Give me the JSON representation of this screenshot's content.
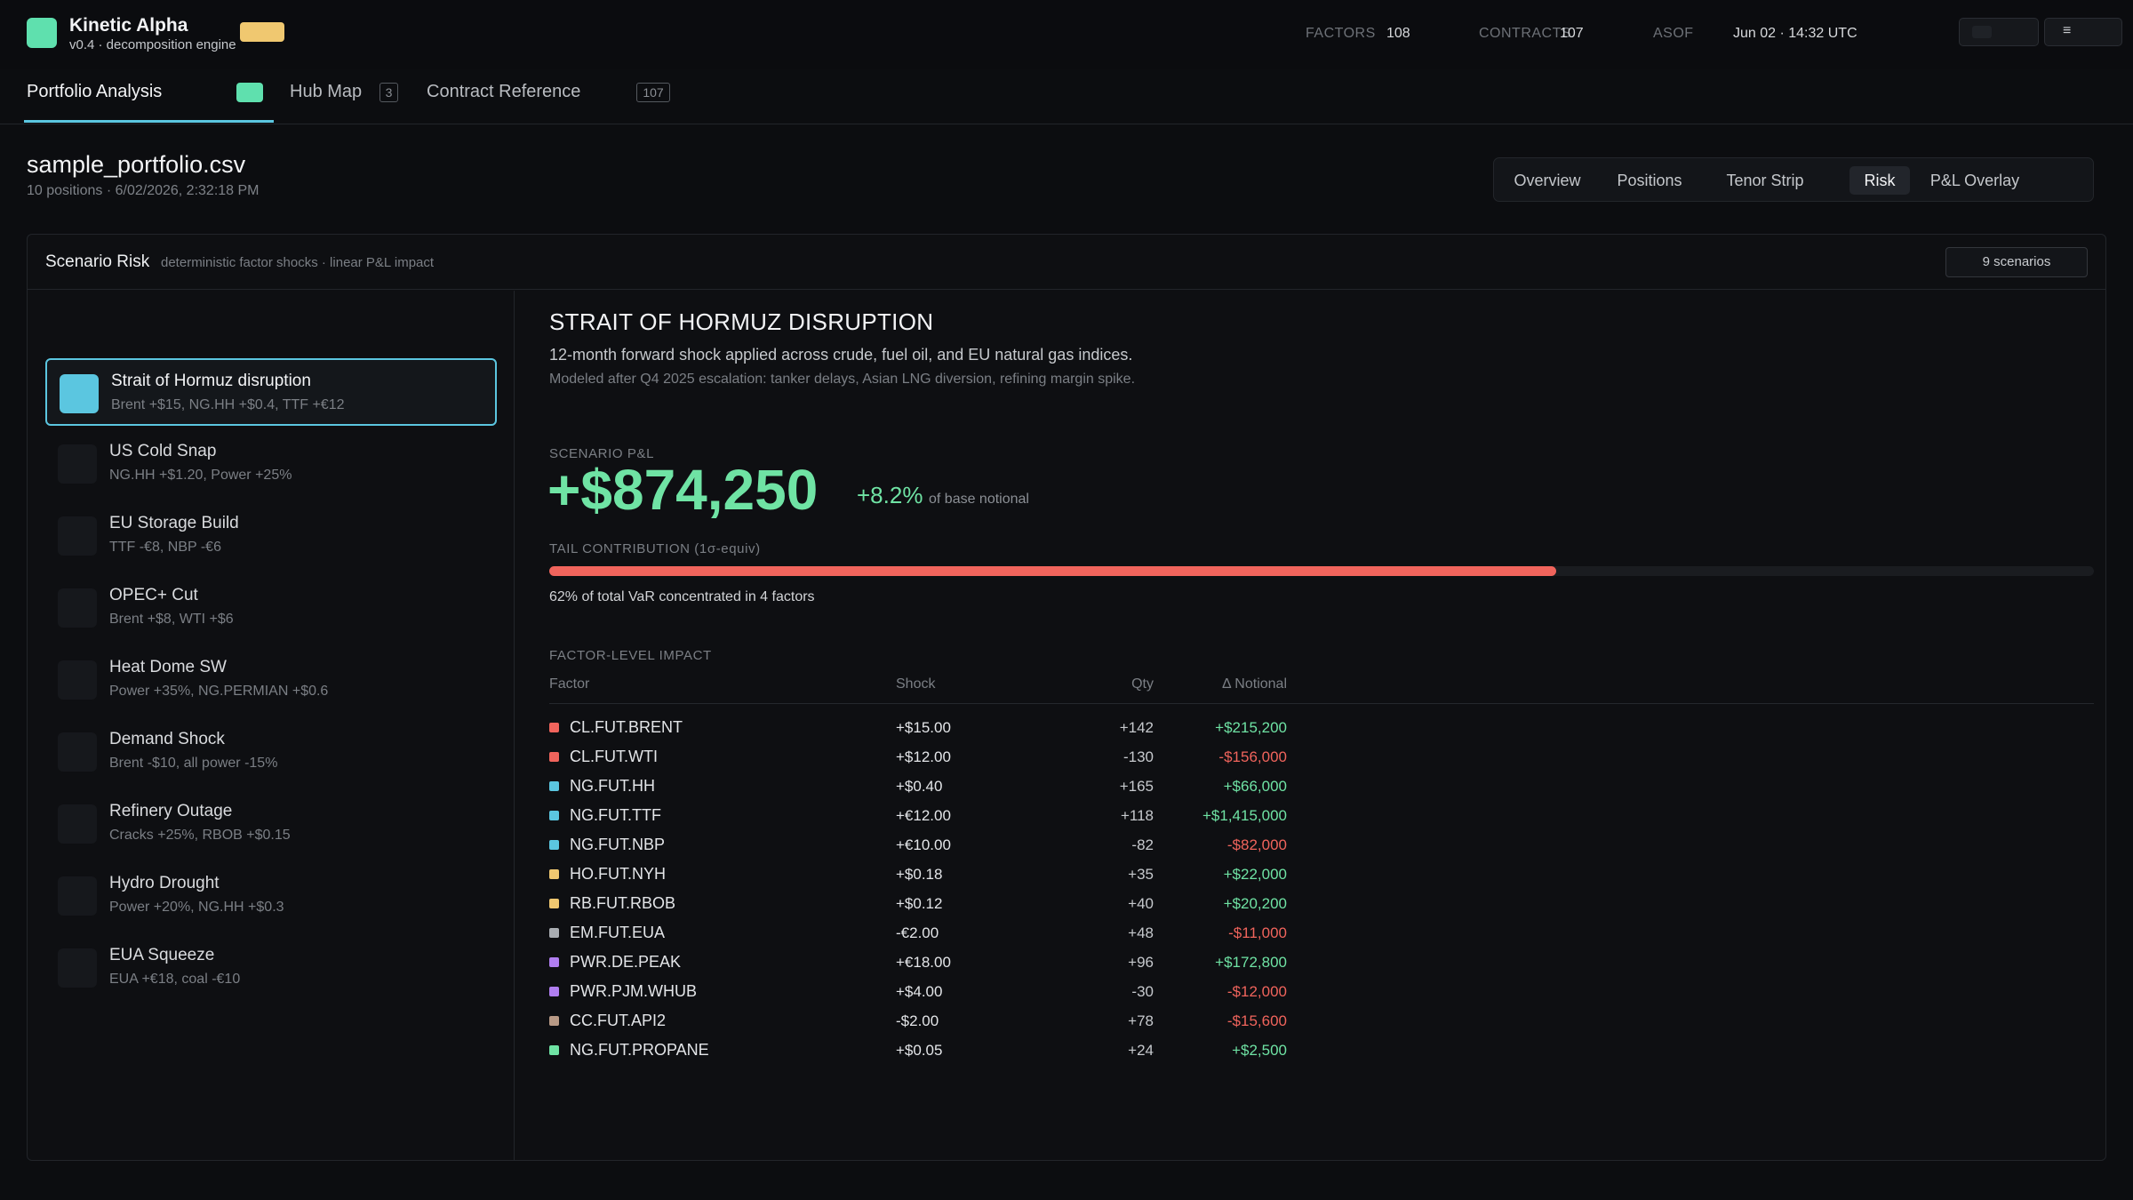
{
  "app": {
    "name": "Kinetic Alpha",
    "version": "v0.4 · decomposition engine",
    "stats": {
      "factors_label": "FACTORS",
      "factors_value": "108",
      "contracts_label": "CONTRACTS",
      "contracts_value": "107",
      "asof_label": "ASOF",
      "asof_value": "Jun 02 · 14:32 UTC"
    },
    "menu_glyph": "≡"
  },
  "tabs": [
    {
      "label": "Portfolio Analysis"
    },
    {
      "label": "Hub Map",
      "count": "3"
    },
    {
      "label": "Contract Reference",
      "count": "107"
    }
  ],
  "file": {
    "name": "sample_portfolio.csv",
    "meta": "10 positions · 6/02/2026, 2:32:18 PM"
  },
  "views": [
    "Overview",
    "Positions",
    "Tenor Strip",
    "Risk",
    "P&L Overlay"
  ],
  "active_view": "Risk",
  "panel": {
    "title": "Scenario Risk",
    "subtitle": "deterministic factor shocks · linear P&L impact",
    "count": "9 scenarios"
  },
  "scenarios": [
    {
      "name": "Strait of Hormuz disruption",
      "desc": "Brent +$15, NG.HH +$0.4, TTF +€12",
      "active": true
    },
    {
      "name": "US Cold Snap",
      "desc": "NG.HH +$1.20, Power +25%"
    },
    {
      "name": "EU Storage Build",
      "desc": "TTF -€8, NBP -€6"
    },
    {
      "name": "OPEC+ Cut",
      "desc": "Brent +$8, WTI +$6"
    },
    {
      "name": "Heat Dome SW",
      "desc": "Power +35%, NG.PERMIAN +$0.6"
    },
    {
      "name": "Demand Shock",
      "desc": "Brent -$10, all power -15%"
    },
    {
      "name": "Refinery Outage",
      "desc": "Cracks +25%, RBOB +$0.15"
    },
    {
      "name": "Hydro Drought",
      "desc": "Power +20%, NG.HH +$0.3"
    },
    {
      "name": "EUA Squeeze",
      "desc": "EUA +€18, coal -€10"
    }
  ],
  "detail": {
    "title": "STRAIT OF HORMUZ DISRUPTION",
    "desc": "12-month forward shock applied across crude, fuel oil, and EU natural gas indices.",
    "note": "Modeled after Q4 2025 escalation: tanker delays, Asian LNG diversion, refining margin spike.",
    "pnl_label": "SCENARIO P&L",
    "pnl_value": "+$874,250",
    "pnl_pct": "+8.2%",
    "pnl_of": "of base notional",
    "tail_label": "TAIL CONTRIBUTION (1σ-equiv)",
    "tail_fraction": 0.62,
    "tail_note": "62% of total VaR concentrated in 4 factors",
    "impact_label": "FACTOR-LEVEL IMPACT",
    "columns": {
      "factor": "Factor",
      "shock": "Shock",
      "qty": "Qty",
      "notional": "Δ Notional"
    }
  },
  "colors": {
    "crude": "#f0645c",
    "gas": "#5bc6e0",
    "products": "#f0c870",
    "emissions": "#a9adb2",
    "power": "#b07ef0",
    "coal": "#b89a86",
    "ngl": "#6fe3a4"
  },
  "factors": [
    {
      "factor": "CL.FUT.BRENT",
      "shock": "+$15.00",
      "qty": "+142",
      "notional": "+$215,200",
      "dir": "pos",
      "group": "crude"
    },
    {
      "factor": "CL.FUT.WTI",
      "shock": "+$12.00",
      "qty": "-130",
      "notional": "-$156,000",
      "dir": "neg",
      "group": "crude"
    },
    {
      "factor": "NG.FUT.HH",
      "shock": "+$0.40",
      "qty": "+165",
      "notional": "+$66,000",
      "dir": "pos",
      "group": "gas"
    },
    {
      "factor": "NG.FUT.TTF",
      "shock": "+€12.00",
      "qty": "+118",
      "notional": "+$1,415,000",
      "dir": "pos",
      "group": "gas"
    },
    {
      "factor": "NG.FUT.NBP",
      "shock": "+€10.00",
      "qty": "-82",
      "notional": "-$82,000",
      "dir": "neg",
      "group": "gas"
    },
    {
      "factor": "HO.FUT.NYH",
      "shock": "+$0.18",
      "qty": "+35",
      "notional": "+$22,000",
      "dir": "pos",
      "group": "products"
    },
    {
      "factor": "RB.FUT.RBOB",
      "shock": "+$0.12",
      "qty": "+40",
      "notional": "+$20,200",
      "dir": "pos",
      "group": "products"
    },
    {
      "factor": "EM.FUT.EUA",
      "shock": "-€2.00",
      "qty": "+48",
      "notional": "-$11,000",
      "dir": "neg",
      "group": "emissions"
    },
    {
      "factor": "PWR.DE.PEAK",
      "shock": "+€18.00",
      "qty": "+96",
      "notional": "+$172,800",
      "dir": "pos",
      "group": "power"
    },
    {
      "factor": "PWR.PJM.WHUB",
      "shock": "+$4.00",
      "qty": "-30",
      "notional": "-$12,000",
      "dir": "neg",
      "group": "power"
    },
    {
      "factor": "CC.FUT.API2",
      "shock": "-$2.00",
      "qty": "+78",
      "notional": "-$15,600",
      "dir": "neg",
      "group": "coal"
    },
    {
      "factor": "NG.FUT.PROPANE",
      "shock": "+$0.05",
      "qty": "+24",
      "notional": "+$2,500",
      "dir": "pos",
      "group": "ngl"
    }
  ]
}
